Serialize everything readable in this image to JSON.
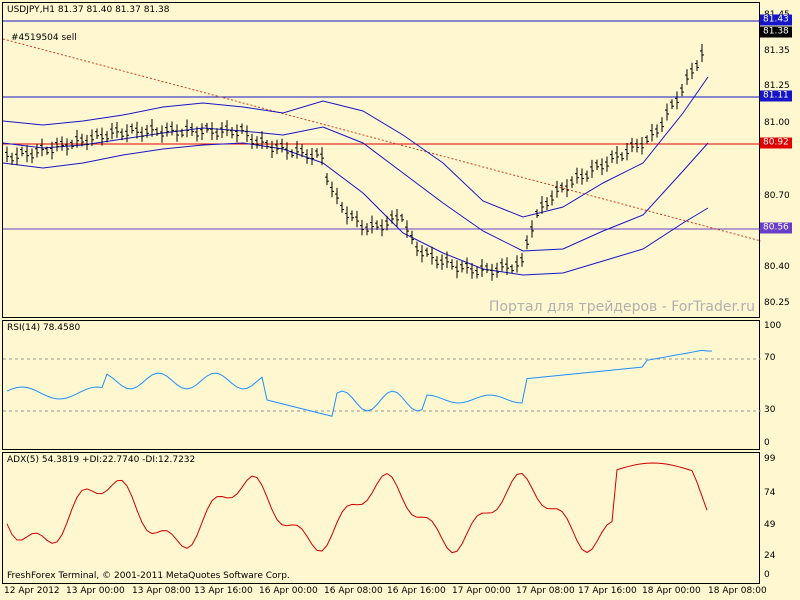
{
  "chart": {
    "symbol_header": "USDJPY,H1  81.37 81.40 81.37 81.38",
    "order_label": "#4519504 sell",
    "watermark": "Портал для трейдеров - ForTrader.ru",
    "copyright": "FreshForex Terminal, © 2001-2011 MetaQuotes Software Corp.",
    "price_ticks": [
      "81.45",
      "81.35",
      "81.25",
      "81.00",
      "80.70",
      "80.40",
      "80.25"
    ],
    "price_ticks_visible": [
      "81.35",
      "81.25",
      "81.00",
      "80.70",
      "80.40",
      "80.25"
    ],
    "badges": [
      {
        "label": "81.43",
        "bg": "#1616c8",
        "fg": "#ffffff"
      },
      {
        "label": "81.38",
        "bg": "#000000",
        "fg": "#ffffff"
      },
      {
        "label": "81.11",
        "bg": "#1616c8",
        "fg": "#ffffff"
      },
      {
        "label": "80.92",
        "bg": "#e00000",
        "fg": "#ffffff"
      },
      {
        "label": "80.56",
        "bg": "#6a3fc8",
        "fg": "#ffffff"
      }
    ],
    "colors": {
      "blue": "#1616c8",
      "red": "#e00000",
      "purple": "#6a3fc8",
      "bars": "#000000",
      "trend": "#d04020"
    }
  },
  "rsi": {
    "header": "RSI(14) 78.4580",
    "ticks": [
      "100",
      "70",
      "30",
      "0"
    ],
    "color": "#1e90ff"
  },
  "adx": {
    "header": "ADX(5) 54.3819 +DI:22.7740 -DI:12.7232",
    "ticks": [
      "99",
      "74",
      "49",
      "24",
      "0"
    ],
    "color": "#d00000"
  },
  "time_axis": [
    "12 Apr 2012",
    "13 Apr 00:00",
    "13 Apr 08:00",
    "13 Apr 16:00",
    "16 Apr 00:00",
    "16 Apr 08:00",
    "16 Apr 16:00",
    "17 Apr 00:00",
    "17 Apr 08:00",
    "17 Apr 16:00",
    "18 Apr 00:00",
    "18 Apr 08:00"
  ]
}
